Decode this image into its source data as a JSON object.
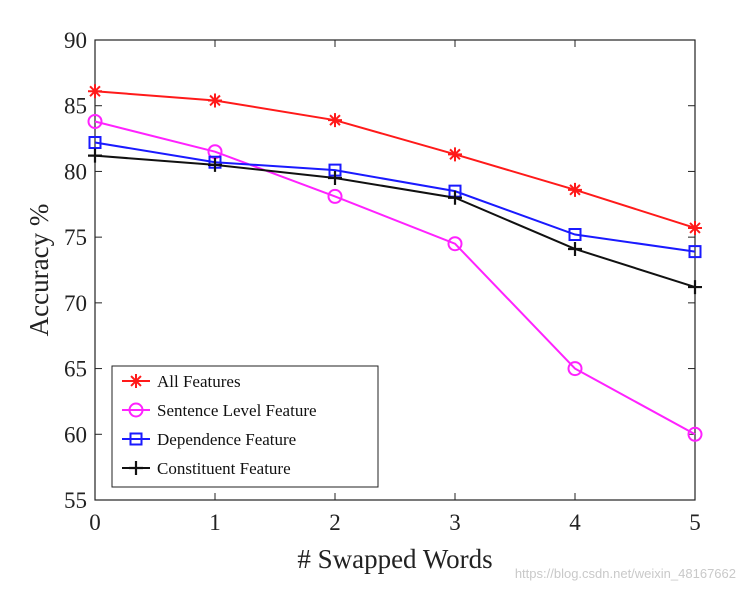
{
  "chart_data": {
    "type": "line",
    "title": "",
    "xlabel": "# Swapped  Words",
    "ylabel": "Accuracy %",
    "x": [
      0,
      1,
      2,
      3,
      4,
      5
    ],
    "xlim": [
      0,
      5
    ],
    "ylim": [
      55,
      90
    ],
    "xticks": [
      "0",
      "1",
      "2",
      "3",
      "4",
      "5"
    ],
    "yticks": [
      "55",
      "60",
      "65",
      "70",
      "75",
      "80",
      "85",
      "90"
    ],
    "grid": false,
    "legend_position": "bottom-left",
    "series": [
      {
        "name": "All Features",
        "values": [
          86.1,
          85.4,
          83.9,
          81.3,
          78.6,
          75.7
        ],
        "color": "#ff1a1a",
        "marker": "asterisk"
      },
      {
        "name": "Sentence Level Feature",
        "values": [
          83.8,
          81.5,
          78.1,
          74.5,
          65.0,
          60.0
        ],
        "color": "#ff22ff",
        "marker": "circle"
      },
      {
        "name": "Dependence Feature",
        "values": [
          82.2,
          80.7,
          80.1,
          78.5,
          75.2,
          73.9
        ],
        "color": "#1a1aff",
        "marker": "square"
      },
      {
        "name": "Constituent Feature",
        "values": [
          81.2,
          80.5,
          79.5,
          78.0,
          74.1,
          71.2
        ],
        "color": "#111111",
        "marker": "plus"
      }
    ]
  },
  "watermark": "https://blog.csdn.net/weixin_48167662"
}
